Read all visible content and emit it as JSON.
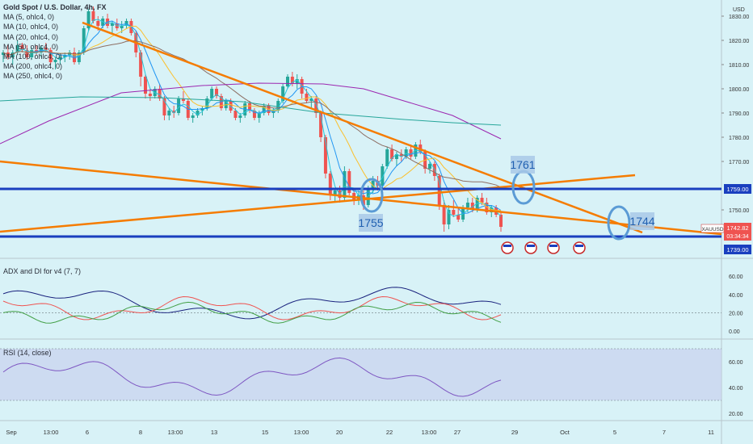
{
  "header": {
    "symbol_title": "Gold Spot / U.S. Dollar, 4h, FX",
    "currency": "USD"
  },
  "legend": [
    "MA (5, ohlc4, 0)",
    "MA (10, ohlc4, 0)",
    "MA (20, ohlc4, 0)",
    "MA (50, ohlc4, 0)",
    "MA (100, ohlc4, 0)",
    "MA (200, ohlc4, 0)",
    "MA (250, ohlc4, 0)"
  ],
  "colors": {
    "bull": "#26a69a",
    "bear": "#ef5350",
    "trend": "#f57c00",
    "hline": "#1a3fbf",
    "circle": "#5b9bd5",
    "ma5": "#26c6da",
    "ma10": "#2196f3",
    "ma20": "#fbc02d",
    "ma50": "#8d6e63",
    "ma100": "#1a237e",
    "ma200": "#26a69a",
    "ma250": "#9c27b0",
    "adx": "#1a237e",
    "diplus": "#ef5350",
    "diminus": "#43a047",
    "rsi": "#7e57c2"
  },
  "annotations": {
    "c1": "1755",
    "c2": "1761",
    "c3": "1744"
  },
  "price_badges": {
    "upper": "1759.00",
    "lower": "1739.00",
    "symbol": "XAUUSD",
    "last": "1742.82",
    "countdown": "03:34:34"
  },
  "adx_pane": {
    "title": "ADX and DI for v4 (7, 7)",
    "ticks": [
      "60.00",
      "40.00",
      "20.00",
      "0.00"
    ]
  },
  "rsi_pane": {
    "title": "RSI (14, close)",
    "ticks": [
      "60.00",
      "40.00",
      "20.00"
    ]
  },
  "chart_data": {
    "type": "candlestick",
    "price_axis": {
      "ticks": [
        1830,
        1820,
        1810,
        1800,
        1790,
        1780,
        1770,
        1750
      ],
      "range": [
        1736,
        1836
      ]
    },
    "x_ticks": [
      "Sep",
      "13:00",
      "6",
      "8",
      "13:00",
      "13",
      "15",
      "13:00",
      "20",
      "22",
      "13:00",
      "27",
      "29",
      "Oct",
      "5",
      "7",
      "11"
    ],
    "horizontal_levels": [
      1759,
      1739
    ],
    "annotated_levels": [
      1755,
      1761,
      1744
    ],
    "last_price": 1742.82,
    "candles": [
      [
        1814,
        1816,
        1811,
        1815
      ],
      [
        1815,
        1818,
        1812,
        1813
      ],
      [
        1813,
        1816,
        1810,
        1815
      ],
      [
        1815,
        1820,
        1814,
        1818
      ],
      [
        1818,
        1819,
        1815,
        1816
      ],
      [
        1816,
        1818,
        1812,
        1813
      ],
      [
        1813,
        1817,
        1812,
        1816
      ],
      [
        1816,
        1818,
        1814,
        1815
      ],
      [
        1815,
        1818,
        1813,
        1817
      ],
      [
        1817,
        1819,
        1815,
        1816
      ],
      [
        1816,
        1817,
        1810,
        1811
      ],
      [
        1811,
        1813,
        1808,
        1812
      ],
      [
        1812,
        1814,
        1810,
        1813
      ],
      [
        1813,
        1815,
        1811,
        1814
      ],
      [
        1814,
        1816,
        1812,
        1815
      ],
      [
        1815,
        1817,
        1810,
        1811
      ],
      [
        1811,
        1816,
        1810,
        1815
      ],
      [
        1815,
        1826,
        1814,
        1825
      ],
      [
        1825,
        1833,
        1824,
        1832
      ],
      [
        1832,
        1834,
        1827,
        1828
      ],
      [
        1828,
        1830,
        1824,
        1826
      ],
      [
        1826,
        1830,
        1825,
        1829
      ],
      [
        1829,
        1831,
        1825,
        1826
      ],
      [
        1826,
        1828,
        1823,
        1827
      ],
      [
        1827,
        1829,
        1824,
        1825
      ],
      [
        1825,
        1828,
        1823,
        1826
      ],
      [
        1826,
        1829,
        1825,
        1828
      ],
      [
        1828,
        1829,
        1822,
        1823
      ],
      [
        1823,
        1824,
        1813,
        1815
      ],
      [
        1815,
        1816,
        1801,
        1805
      ],
      [
        1805,
        1806,
        1796,
        1798
      ],
      [
        1798,
        1800,
        1795,
        1797
      ],
      [
        1797,
        1801,
        1796,
        1800
      ],
      [
        1800,
        1802,
        1795,
        1796
      ],
      [
        1796,
        1797,
        1787,
        1789
      ],
      [
        1789,
        1792,
        1787,
        1791
      ],
      [
        1791,
        1793,
        1788,
        1790
      ],
      [
        1790,
        1797,
        1789,
        1796
      ],
      [
        1796,
        1799,
        1794,
        1795
      ],
      [
        1795,
        1796,
        1787,
        1788
      ],
      [
        1788,
        1790,
        1786,
        1789
      ],
      [
        1789,
        1792,
        1788,
        1791
      ],
      [
        1791,
        1793,
        1789,
        1792
      ],
      [
        1792,
        1797,
        1791,
        1796
      ],
      [
        1796,
        1801,
        1795,
        1800
      ],
      [
        1800,
        1801,
        1796,
        1797
      ],
      [
        1797,
        1798,
        1791,
        1792
      ],
      [
        1792,
        1796,
        1791,
        1795
      ],
      [
        1795,
        1796,
        1790,
        1791
      ],
      [
        1791,
        1792,
        1787,
        1788
      ],
      [
        1788,
        1790,
        1786,
        1789
      ],
      [
        1789,
        1795,
        1788,
        1794
      ],
      [
        1794,
        1795,
        1790,
        1791
      ],
      [
        1791,
        1792,
        1787,
        1788
      ],
      [
        1788,
        1791,
        1786,
        1790
      ],
      [
        1790,
        1794,
        1789,
        1793
      ],
      [
        1793,
        1794,
        1789,
        1790
      ],
      [
        1790,
        1792,
        1788,
        1791
      ],
      [
        1791,
        1796,
        1790,
        1795
      ],
      [
        1795,
        1802,
        1794,
        1801
      ],
      [
        1801,
        1806,
        1800,
        1805
      ],
      [
        1805,
        1807,
        1801,
        1802
      ],
      [
        1802,
        1806,
        1800,
        1804
      ],
      [
        1804,
        1805,
        1796,
        1798
      ],
      [
        1798,
        1800,
        1794,
        1795
      ],
      [
        1795,
        1797,
        1792,
        1796
      ],
      [
        1796,
        1797,
        1788,
        1790
      ],
      [
        1790,
        1791,
        1778,
        1780
      ],
      [
        1780,
        1781,
        1763,
        1765
      ],
      [
        1765,
        1766,
        1754,
        1756
      ],
      [
        1756,
        1759,
        1753,
        1758
      ],
      [
        1758,
        1760,
        1753,
        1755
      ],
      [
        1755,
        1768,
        1754,
        1766
      ],
      [
        1766,
        1767,
        1756,
        1757
      ],
      [
        1757,
        1759,
        1752,
        1754
      ],
      [
        1754,
        1758,
        1752,
        1756
      ],
      [
        1756,
        1758,
        1750,
        1752
      ],
      [
        1752,
        1760,
        1751,
        1759
      ],
      [
        1759,
        1764,
        1757,
        1762
      ],
      [
        1762,
        1764,
        1758,
        1760
      ],
      [
        1760,
        1769,
        1759,
        1768
      ],
      [
        1768,
        1776,
        1767,
        1775
      ],
      [
        1775,
        1777,
        1770,
        1771
      ],
      [
        1771,
        1774,
        1768,
        1773
      ],
      [
        1773,
        1775,
        1770,
        1772
      ],
      [
        1772,
        1776,
        1771,
        1775
      ],
      [
        1775,
        1777,
        1771,
        1772
      ],
      [
        1772,
        1778,
        1771,
        1777
      ],
      [
        1777,
        1779,
        1773,
        1774
      ],
      [
        1774,
        1775,
        1765,
        1767
      ],
      [
        1767,
        1770,
        1765,
        1769
      ],
      [
        1769,
        1770,
        1762,
        1764
      ],
      [
        1764,
        1765,
        1750,
        1752
      ],
      [
        1752,
        1754,
        1741,
        1744
      ],
      [
        1744,
        1752,
        1742,
        1750
      ],
      [
        1750,
        1754,
        1747,
        1748
      ],
      [
        1748,
        1751,
        1745,
        1746
      ],
      [
        1746,
        1752,
        1745,
        1751
      ],
      [
        1751,
        1755,
        1749,
        1753
      ],
      [
        1753,
        1755,
        1749,
        1750
      ],
      [
        1750,
        1756,
        1749,
        1755
      ],
      [
        1755,
        1757,
        1752,
        1753
      ],
      [
        1753,
        1755,
        1748,
        1749
      ],
      [
        1749,
        1752,
        1747,
        1751
      ],
      [
        1751,
        1752,
        1747,
        1748
      ],
      [
        1748,
        1749,
        1741,
        1743
      ]
    ],
    "adx_pane": {
      "range": [
        0,
        80
      ]
    },
    "rsi_pane": {
      "range": [
        15,
        75
      ],
      "band": [
        30,
        70
      ]
    }
  }
}
